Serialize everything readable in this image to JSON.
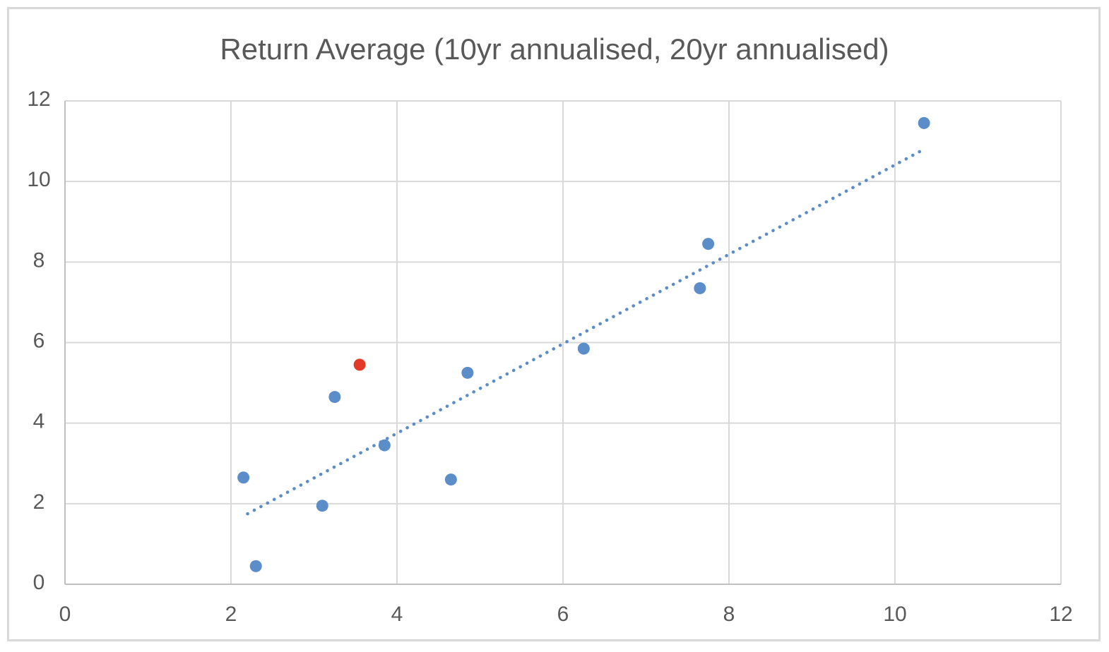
{
  "chart_data": {
    "type": "scatter",
    "title": "Return Average (10yr annualised, 20yr annualised)",
    "xlabel": "",
    "ylabel": "",
    "xlim": [
      0,
      12
    ],
    "ylim": [
      0,
      12
    ],
    "x_ticks": [
      0,
      2,
      4,
      6,
      8,
      10,
      12
    ],
    "y_ticks": [
      0,
      2,
      4,
      6,
      8,
      10,
      12
    ],
    "grid": true,
    "legend": "none",
    "series": [
      {
        "name": "returns-scatter",
        "marker": "circle",
        "color": "#5B8DC9",
        "points": [
          {
            "x": 2.15,
            "y": 2.65
          },
          {
            "x": 2.3,
            "y": 0.45
          },
          {
            "x": 3.1,
            "y": 1.95
          },
          {
            "x": 3.25,
            "y": 4.65
          },
          {
            "x": 3.85,
            "y": 3.45
          },
          {
            "x": 4.65,
            "y": 2.6
          },
          {
            "x": 4.85,
            "y": 5.25
          },
          {
            "x": 6.25,
            "y": 5.85
          },
          {
            "x": 7.65,
            "y": 7.35
          },
          {
            "x": 7.75,
            "y": 8.45
          },
          {
            "x": 10.35,
            "y": 11.45
          }
        ]
      },
      {
        "name": "highlight-point",
        "marker": "circle",
        "color": "#E23A26",
        "points": [
          {
            "x": 3.55,
            "y": 5.45
          }
        ]
      }
    ],
    "trendline": {
      "style": "dotted",
      "color": "#5B8DC9",
      "from": {
        "x": 2.2,
        "y": 1.75
      },
      "to": {
        "x": 10.35,
        "y": 10.8
      }
    },
    "theme": {
      "text_color": "#595959",
      "gridline_color": "#D9D9D9",
      "axis_line_color": "#BFBFBF",
      "background_color": "#FFFFFF",
      "border_color": "#D9D9D9"
    }
  }
}
